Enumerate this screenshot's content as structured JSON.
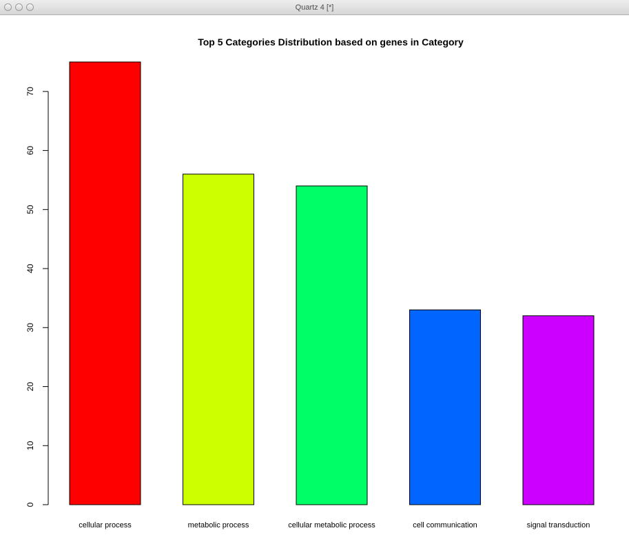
{
  "window": {
    "title": "Quartz 4 [*]"
  },
  "chart_data": {
    "type": "bar",
    "title": "Top 5 Categories Distribution based on genes in Category",
    "xlabel": "",
    "ylabel": "",
    "categories": [
      "cellular process",
      "metabolic process",
      "cellular metabolic process",
      "cell communication",
      "signal transduction"
    ],
    "values": [
      75,
      56,
      54,
      33,
      32
    ],
    "colors": [
      "#ff0000",
      "#ccff00",
      "#00ff66",
      "#0066ff",
      "#cc00ff"
    ],
    "ylim": [
      0,
      75
    ],
    "yticks": [
      "0",
      "10",
      "20",
      "30",
      "40",
      "50",
      "60",
      "70"
    ],
    "grid": false,
    "legend": "none"
  }
}
